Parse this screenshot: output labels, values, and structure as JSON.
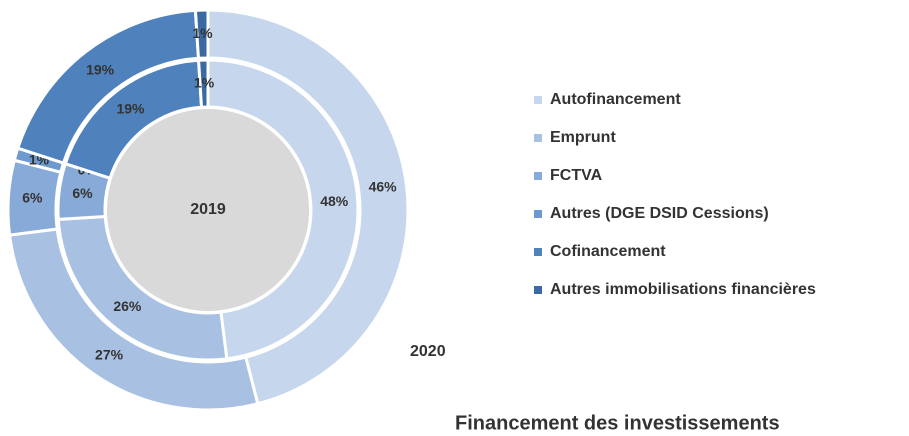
{
  "chart_data": {
    "type": "donut",
    "title": "Financement des investissements",
    "categories": [
      "Autofinancement",
      "Emprunt",
      "FCTVA",
      "Autres (DGE DSID Cessions)",
      "Cofinancement",
      "Autres immobilisations financières"
    ],
    "colors": [
      "#c6d6ec",
      "#a8c0e2",
      "#87aad9",
      "#6d99cf",
      "#4f81bd",
      "#3b6aa3"
    ],
    "series": [
      {
        "name": "2019",
        "values": [
          48,
          26,
          6,
          0,
          19,
          1
        ],
        "value_labels": [
          "48%",
          "26%",
          "6%",
          "0%",
          "19%",
          "1%"
        ]
      },
      {
        "name": "2020",
        "values": [
          46,
          27,
          6,
          1,
          19,
          1
        ],
        "value_labels": [
          "46%",
          "27%",
          "6%",
          "1%",
          "19%",
          "1%"
        ]
      }
    ]
  }
}
